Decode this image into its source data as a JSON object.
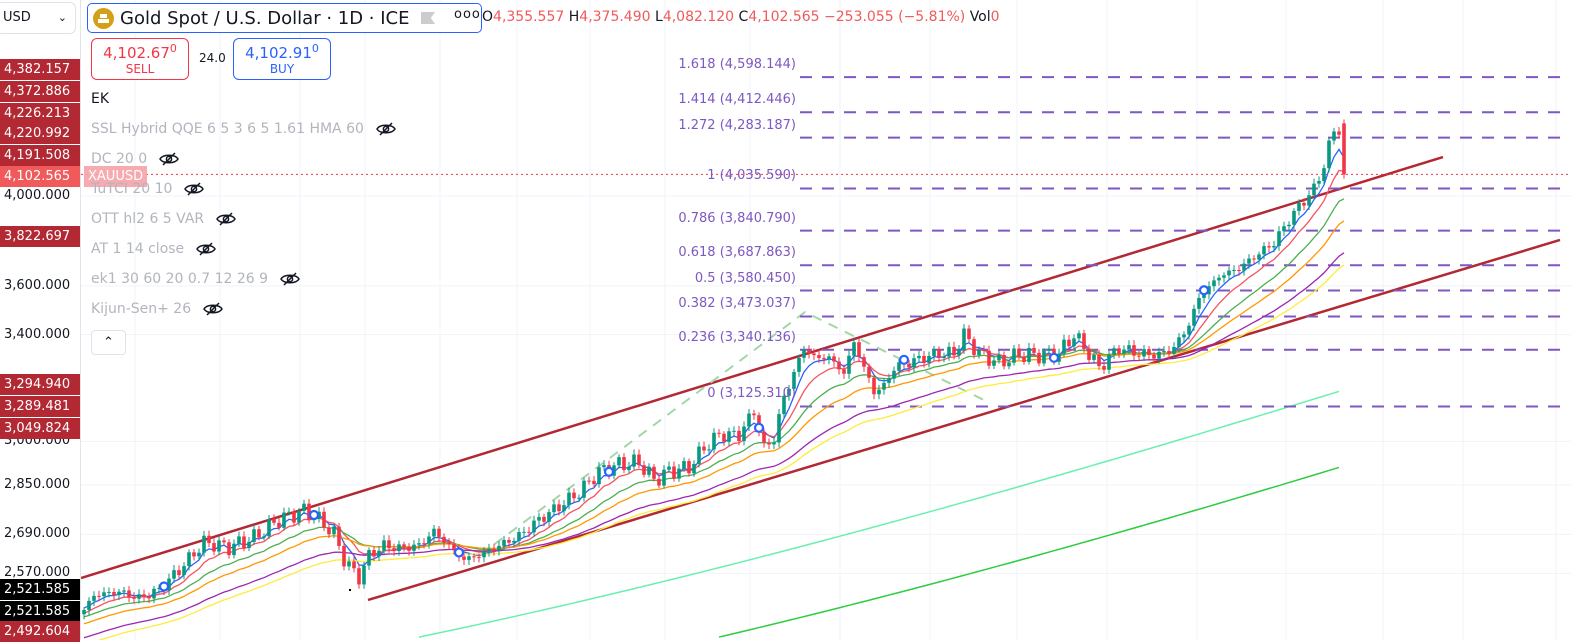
{
  "currency_select": {
    "value": "USD"
  },
  "symbol": {
    "title": "Gold Spot / U.S. Dollar · 1D · ICE",
    "more": "ooo"
  },
  "ohlc": {
    "o_label": "O",
    "o": "4,355.557",
    "h_label": "H",
    "h": "4,375.490",
    "l_label": "L",
    "l": "4,082.120",
    "c_label": "C",
    "c": "4,102.565",
    "change": "−253.055 (−5.81%)",
    "vol_label": "Vol",
    "vol": "0"
  },
  "trade": {
    "sell_price": "4,102.67",
    "sell_sup": "0",
    "sell_label": "SELL",
    "spread": "24.0",
    "buy_price": "4,102.91",
    "buy_sup": "0",
    "buy_label": "BUY"
  },
  "indicators": [
    {
      "label": "EK",
      "hidden": false
    },
    {
      "label": "SSL Hybrid QQE 6 5 3 6 5 1.61 HMA 60",
      "hidden": true
    },
    {
      "label": "DC 20 0",
      "hidden": true
    },
    {
      "label": "TuTCI 20 10",
      "hidden": true
    },
    {
      "label": "OTT hl2 6 5 VAR",
      "hidden": true
    },
    {
      "label": "AT 1 14 close",
      "hidden": true
    },
    {
      "label": "ek1 30 60 20 0.7 12 26 9",
      "hidden": true
    },
    {
      "label": "Kijun-Sen+ 26",
      "hidden": true
    }
  ],
  "collapse_icon": "chevron-up-icon",
  "price_axis": {
    "ticks": [
      "4,000.000",
      "3,600.000",
      "3,400.000",
      "3,000.000",
      "2,850.000",
      "2,690.000",
      "2,570.000"
    ],
    "tick_values": [
      4000,
      3600,
      3400,
      3000,
      2850,
      2690,
      2570
    ],
    "tags": [
      {
        "text": "4,382.157",
        "style": "red"
      },
      {
        "text": "4,372.886",
        "style": "red"
      },
      {
        "text": "4,226.213",
        "style": "red"
      },
      {
        "text": "4,220.992",
        "style": "red"
      },
      {
        "text": "4,191.508",
        "style": "red"
      },
      {
        "text": "4,102.565",
        "style": "current"
      },
      {
        "text": "3,822.697",
        "style": "red"
      },
      {
        "text": "3,294.940",
        "style": "red"
      },
      {
        "text": "3,289.481",
        "style": "red"
      },
      {
        "text": "3,049.824",
        "style": "red"
      },
      {
        "text": "2,521.585",
        "style": "black"
      },
      {
        "text": "2,521.585",
        "style": "black"
      },
      {
        "text": "2,492.604",
        "style": "red"
      }
    ],
    "symbol_tag": "XAUUSD",
    "scale": "log"
  },
  "colors": {
    "up": "#089981",
    "down": "#f23645",
    "channel": "#b22833",
    "fib": "#7e57c2",
    "current_line": "#f23645",
    "signal": "#2962ff",
    "zigzag": "#a5d6a7"
  },
  "chart_data": {
    "type": "candlestick",
    "price_path": [
      [
        0,
        2462
      ],
      [
        2,
        2505
      ],
      [
        7,
        2515
      ],
      [
        11,
        2496
      ],
      [
        15,
        2520
      ],
      [
        19,
        2580
      ],
      [
        24,
        2665
      ],
      [
        29,
        2650
      ],
      [
        34,
        2680
      ],
      [
        39,
        2737
      ],
      [
        44,
        2766
      ],
      [
        47,
        2737
      ],
      [
        50,
        2693
      ],
      [
        52,
        2612
      ],
      [
        55,
        2556
      ],
      [
        57,
        2625
      ],
      [
        60,
        2655
      ],
      [
        63,
        2647
      ],
      [
        67,
        2655
      ],
      [
        70,
        2700
      ],
      [
        73,
        2655
      ],
      [
        76,
        2612
      ],
      [
        79,
        2625
      ],
      [
        83,
        2655
      ],
      [
        87,
        2685
      ],
      [
        91,
        2737
      ],
      [
        95,
        2780
      ],
      [
        99,
        2826
      ],
      [
        103,
        2896
      ],
      [
        107,
        2920
      ],
      [
        111,
        2927
      ],
      [
        114,
        2867
      ],
      [
        117,
        2896
      ],
      [
        121,
        2910
      ],
      [
        124,
        2977
      ],
      [
        127,
        3023
      ],
      [
        131,
        3023
      ],
      [
        134,
        3108
      ],
      [
        136,
        2977
      ],
      [
        138,
        3010
      ],
      [
        140,
        3160
      ],
      [
        142,
        3250
      ],
      [
        144,
        3348
      ],
      [
        146,
        3310
      ],
      [
        149,
        3310
      ],
      [
        152,
        3250
      ],
      [
        154,
        3370
      ],
      [
        156,
        3270
      ],
      [
        158,
        3180
      ],
      [
        160,
        3200
      ],
      [
        162,
        3270
      ],
      [
        165,
        3290
      ],
      [
        168,
        3310
      ],
      [
        171,
        3325
      ],
      [
        174,
        3325
      ],
      [
        176,
        3400
      ],
      [
        179,
        3325
      ],
      [
        183,
        3290
      ],
      [
        187,
        3320
      ],
      [
        191,
        3320
      ],
      [
        195,
        3325
      ],
      [
        198,
        3400
      ],
      [
        201,
        3325
      ],
      [
        203,
        3270
      ],
      [
        207,
        3348
      ],
      [
        211,
        3325
      ],
      [
        215,
        3320
      ],
      [
        218,
        3348
      ],
      [
        221,
        3440
      ],
      [
        223,
        3550
      ],
      [
        227,
        3640
      ],
      [
        231,
        3675
      ],
      [
        235,
        3740
      ],
      [
        238,
        3787
      ],
      [
        241,
        3890
      ],
      [
        244,
        3980
      ],
      [
        246,
        4030
      ],
      [
        248,
        4150
      ],
      [
        250,
        4320
      ],
      [
        251,
        4330
      ],
      [
        252,
        4102.565
      ]
    ],
    "last_candle": {
      "open": 4355.557,
      "high": 4375.49,
      "low": 4082.12,
      "close": 4102.565
    },
    "moving_averages": [
      {
        "period": 5,
        "color": "#2962ff",
        "seed": 2470
      },
      {
        "period": 10,
        "color": "#f7525f",
        "seed": 2450
      },
      {
        "period": 20,
        "color": "#4caf50",
        "seed": 2440
      },
      {
        "period": 30,
        "color": "#ff9800",
        "seed": 2420
      },
      {
        "period": 50,
        "color": "#9c27b0",
        "seed": 2380
      },
      {
        "period": 60,
        "color": "#ffeb3b",
        "seed": 2360
      }
    ],
    "long_averages": [
      {
        "color": "#69f0ae",
        "points": [
          [
            67,
            2385
          ],
          [
            160,
            2720
          ],
          [
            252,
            3187
          ]
        ]
      },
      {
        "color": "#2ecc40",
        "points": [
          [
            127,
            2385
          ],
          [
            190,
            2620
          ],
          [
            252,
            2915
          ]
        ]
      }
    ],
    "channel_lines": [
      [
        [
          -0.6,
          2556
        ],
        [
          271.8,
          4187
        ]
      ],
      [
        [
          56.8,
          2491
        ],
        [
          295.2,
          3799
        ]
      ]
    ],
    "zigzag": [
      [
        79.2,
        2626
      ],
      [
        144.2,
        3491
      ],
      [
        181.2,
        3138
      ]
    ],
    "signal_markers": [
      16,
      46,
      75,
      105,
      135,
      164,
      194,
      224
    ],
    "fib_levels": [
      {
        "ratio": "1.618",
        "price": 4598.144,
        "label": "1.618 (4,598.144)"
      },
      {
        "ratio": "1.414",
        "price": 4412.446,
        "label": "1.414 (4,412.446)"
      },
      {
        "ratio": "1.272",
        "price": 4283.187,
        "label": "1.272 (4,283.187)"
      },
      {
        "ratio": "1",
        "price": 4035.59,
        "label": "1 (4,035.590)"
      },
      {
        "ratio": "0.786",
        "price": 3840.79,
        "label": "0.786 (3,840.790)"
      },
      {
        "ratio": "0.618",
        "price": 3687.863,
        "label": "0.618 (3,687.863)"
      },
      {
        "ratio": "0.5",
        "price": 3580.45,
        "label": "0.5 (3,580.450)"
      },
      {
        "ratio": "0.382",
        "price": 3473.037,
        "label": "0.382 (3,473.037)"
      },
      {
        "ratio": "0.236",
        "price": 3340.136,
        "label": "0.236 (3,340.136)"
      },
      {
        "ratio": "0",
        "price": 3125.31,
        "label": "0 (3,125.310)"
      }
    ],
    "fib_range_bars": [
      143.2,
      295.2
    ],
    "current_price": 4102.565
  }
}
